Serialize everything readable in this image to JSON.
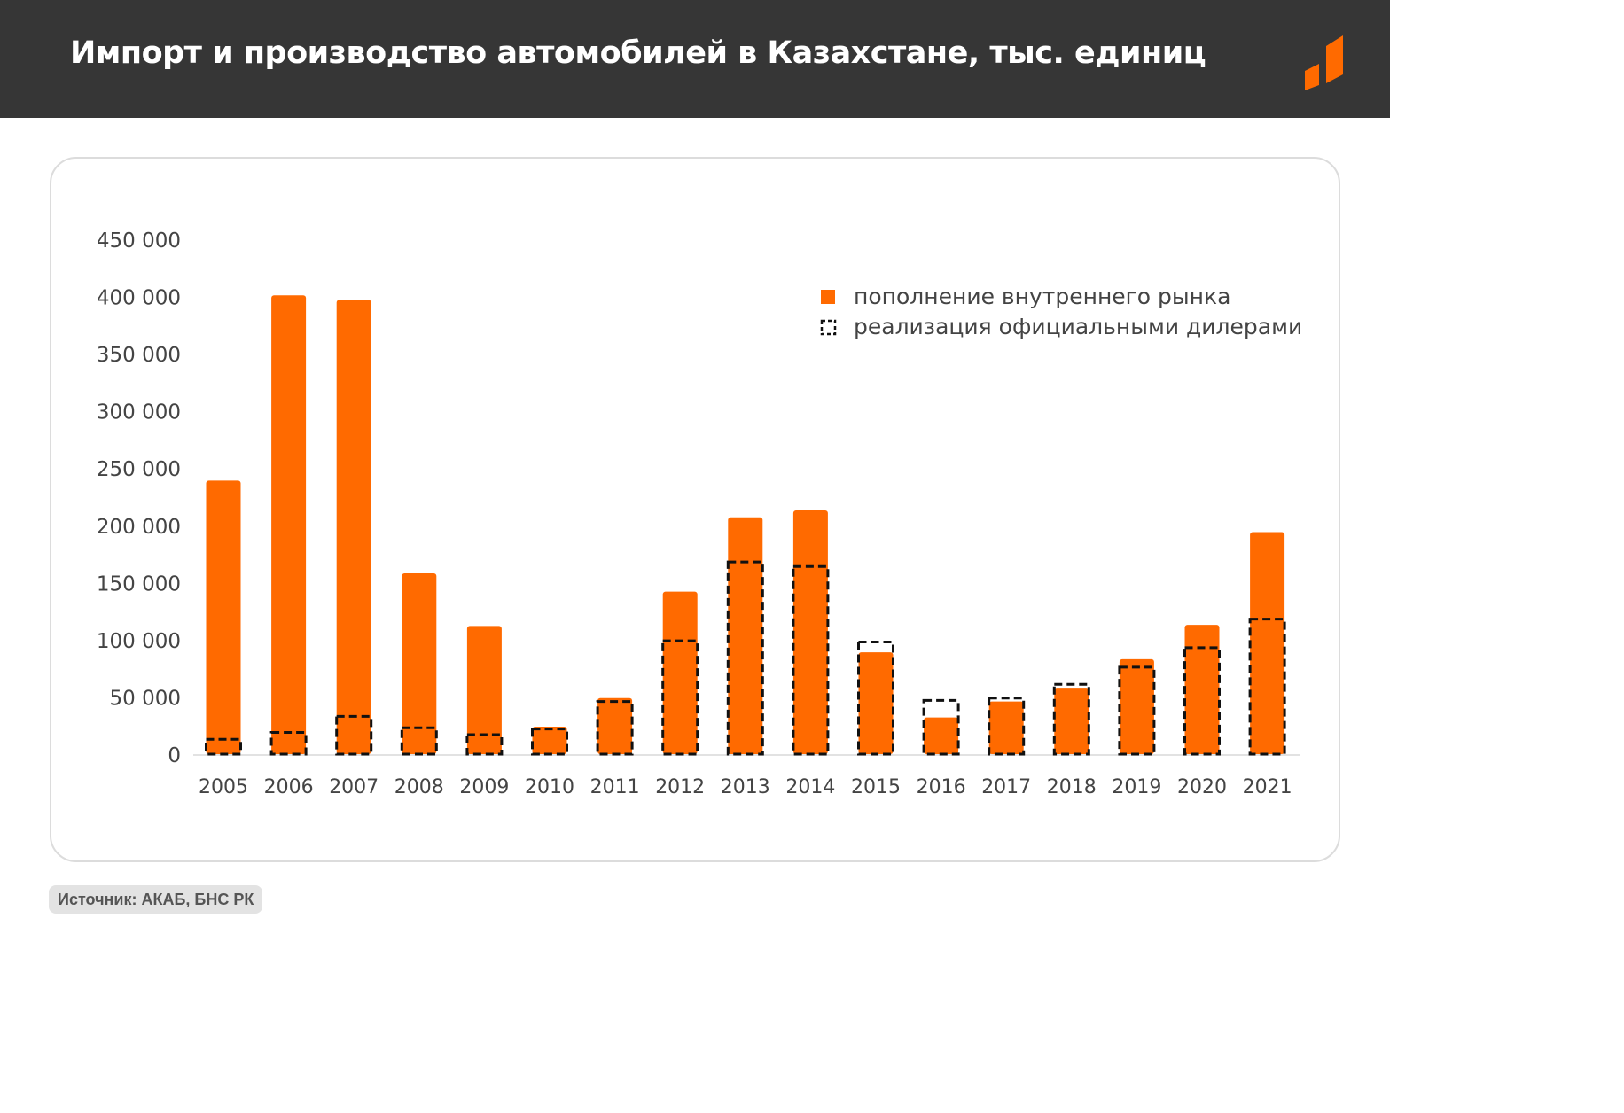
{
  "header": {
    "title": "Импорт и производство автомобилей в Казахстане, тыс. единиц"
  },
  "colors": {
    "accent": "#ff6a00",
    "header_bg": "#363636",
    "text": "#444444",
    "dealer_outline": "#111111"
  },
  "source": "Источник: АКАБ, БНС РК",
  "chart_data": {
    "type": "bar",
    "title": "Импорт и производство автомобилей в Казахстане, тыс. единиц",
    "xlabel": "",
    "ylabel": "",
    "ylim": [
      0,
      450000
    ],
    "yticks": [
      0,
      50000,
      100000,
      150000,
      200000,
      250000,
      300000,
      350000,
      400000,
      450000
    ],
    "ytick_labels": [
      "0",
      "50 000",
      "100 000",
      "150 000",
      "200 000",
      "250 000",
      "300 000",
      "350 000",
      "400 000",
      "450 000"
    ],
    "grid": false,
    "legend_position": "top-right",
    "categories": [
      "2005",
      "2006",
      "2007",
      "2008",
      "2009",
      "2010",
      "2011",
      "2012",
      "2013",
      "2014",
      "2015",
      "2016",
      "2017",
      "2018",
      "2019",
      "2020",
      "2021"
    ],
    "series": [
      {
        "name": "пополнение внутреннего рынка",
        "style": "filled",
        "values": [
          239000,
          401000,
          397000,
          158000,
          112000,
          24000,
          49000,
          142000,
          207000,
          213000,
          89000,
          32000,
          46000,
          58000,
          83000,
          113000,
          194000
        ]
      },
      {
        "name": "реализация официальными дилерами",
        "style": "dashed-outline",
        "values": [
          13000,
          19000,
          33000,
          23000,
          17000,
          22000,
          46000,
          99000,
          168000,
          164000,
          98000,
          47000,
          49000,
          61000,
          76000,
          93000,
          118000
        ]
      }
    ]
  }
}
